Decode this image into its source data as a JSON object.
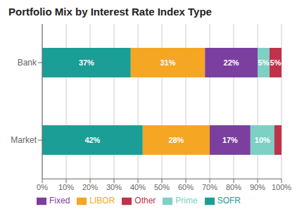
{
  "chart_data": {
    "type": "bar",
    "title": "Portfolio Mix by Interest Rate Index Type",
    "orientation": "horizontal",
    "stacked": true,
    "categories": [
      "Bank",
      "Market"
    ],
    "series": [
      {
        "name": "SOFR",
        "color": "#1a9e96",
        "values": [
          37,
          42
        ],
        "value_labels": [
          "37%",
          "42%"
        ]
      },
      {
        "name": "LIBOR",
        "color": "#f5a623",
        "values": [
          31,
          28
        ],
        "value_labels": [
          "31%",
          "28%"
        ]
      },
      {
        "name": "Fixed",
        "color": "#7b3fa0",
        "values": [
          22,
          17
        ],
        "value_labels": [
          "22%",
          "17%"
        ]
      },
      {
        "name": "Prime",
        "color": "#7ecfc4",
        "values": [
          5,
          10
        ],
        "value_labels": [
          "5%",
          "10%"
        ]
      },
      {
        "name": "Other",
        "color": "#c0324a",
        "values": [
          5,
          3
        ],
        "value_labels": [
          "5%",
          null
        ]
      }
    ],
    "xlim": [
      0,
      100
    ],
    "xticks": [
      {
        "value": 0,
        "label": "0%"
      },
      {
        "value": 10,
        "label": "10%"
      },
      {
        "value": 20,
        "label": "20%"
      },
      {
        "value": 30,
        "label": "30%"
      },
      {
        "value": 40,
        "label": "40%"
      },
      {
        "value": 50,
        "label": "50%"
      },
      {
        "value": 60,
        "label": "60%"
      },
      {
        "value": 70,
        "label": "70%"
      },
      {
        "value": 80,
        "label": "80%"
      },
      {
        "value": 90,
        "label": "90%"
      },
      {
        "value": 100,
        "label": "100%"
      }
    ],
    "grid": true,
    "data_labels": true,
    "legend": "bottom"
  }
}
